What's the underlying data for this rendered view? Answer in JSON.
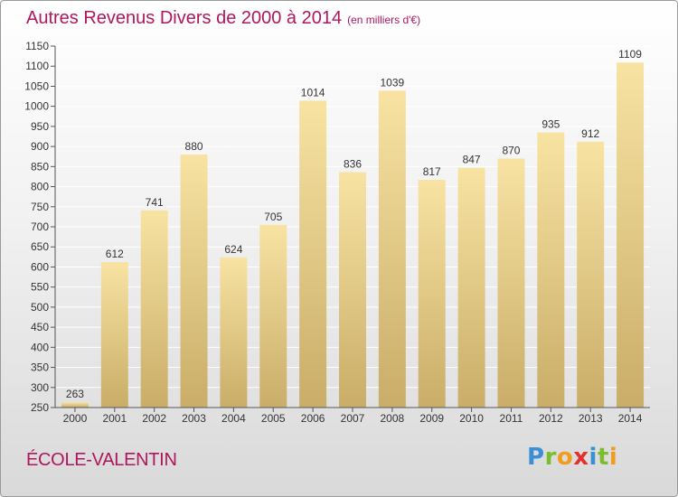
{
  "title": "Autres Revenus Divers de 2000 à 2014",
  "subtitle": "(en milliers d'€)",
  "city": "ÉCOLE-VALENTIN",
  "logo": {
    "letters": [
      "P",
      "r",
      "o",
      "x",
      "i",
      "t",
      "i"
    ],
    "colors": [
      "#3a8fd6",
      "#7cbd2f",
      "#f29c1f",
      "#e2302f",
      "#3a8fd6",
      "#7cbd2f",
      "#f29c1f"
    ]
  },
  "colors": {
    "title": "#b0165e",
    "bar_top": "#f8e3a3",
    "bar_bottom": "#c9ad68",
    "grid": "#ffffff",
    "text": "#333333"
  },
  "chart_data": {
    "type": "bar",
    "categories": [
      "2000",
      "2001",
      "2002",
      "2003",
      "2004",
      "2005",
      "2006",
      "2007",
      "2008",
      "2009",
      "2010",
      "2011",
      "2012",
      "2013",
      "2014"
    ],
    "values": [
      263,
      612,
      741,
      880,
      624,
      705,
      1014,
      836,
      1039,
      817,
      847,
      870,
      935,
      912,
      1109
    ],
    "ylim": [
      250,
      1150
    ],
    "yticks": [
      250,
      300,
      350,
      400,
      450,
      500,
      550,
      600,
      650,
      700,
      750,
      800,
      850,
      900,
      950,
      1000,
      1050,
      1100,
      1150
    ],
    "grid": true,
    "data_labels": true
  }
}
